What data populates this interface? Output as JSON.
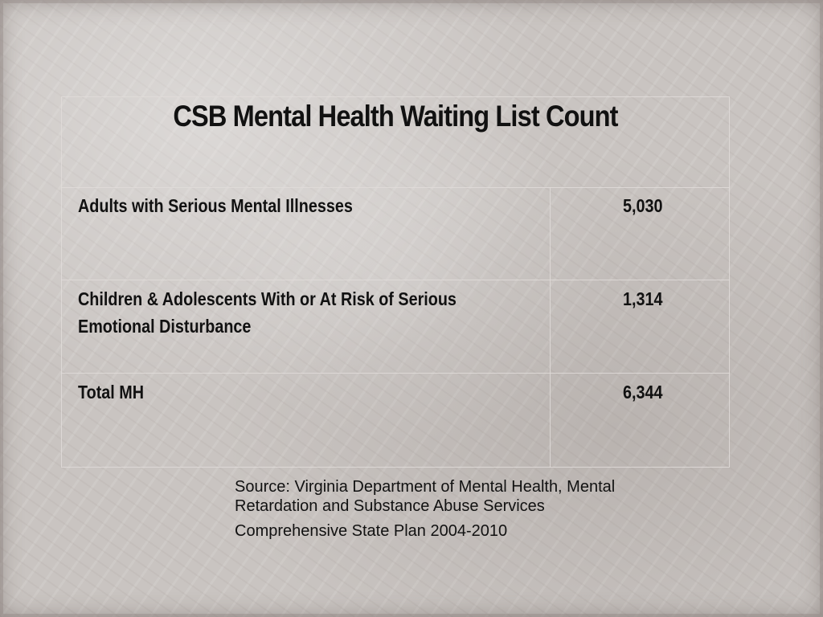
{
  "slide": {
    "title": "CSB Mental Health Waiting List Count"
  },
  "table": {
    "rows": [
      {
        "label_line1": "Adults with Serious Mental Illnesses",
        "label_line2": "",
        "value": "5,030"
      },
      {
        "label_line1": "Children & Adolescents With or At Risk of Serious",
        "label_line2": "Emotional Disturbance",
        "value": "1,314"
      },
      {
        "label_line1": "Total MH",
        "label_line2": "",
        "value": "6,344"
      }
    ]
  },
  "source": {
    "line1": "Source: Virginia Department of Mental Health, Mental",
    "line2": "Retardation and Substance Abuse Services",
    "line3": "Comprehensive State Plan 2004-2010"
  }
}
